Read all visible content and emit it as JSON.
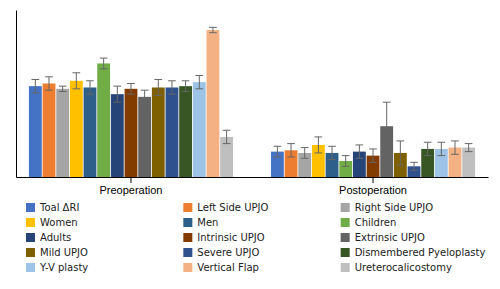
{
  "chart_data": {
    "type": "bar",
    "categories": [
      "Preoperation",
      "Postoperation"
    ],
    "series": [
      {
        "name": "Toal ΔRI",
        "color": "#4472C4",
        "values": [
          0.68,
          0.19
        ],
        "errors": [
          0.05,
          0.04
        ]
      },
      {
        "name": "Left Side UPJO",
        "color": "#ED7D31",
        "values": [
          0.7,
          0.2
        ],
        "errors": [
          0.05,
          0.05
        ]
      },
      {
        "name": "Right Side UPJO",
        "color": "#A5A5A5",
        "values": [
          0.66,
          0.18
        ],
        "errors": [
          0.02,
          0.04
        ]
      },
      {
        "name": "Women",
        "color": "#FFC000",
        "values": [
          0.72,
          0.24
        ],
        "errors": [
          0.06,
          0.06
        ]
      },
      {
        "name": "Men",
        "color": "#2E5F8A",
        "values": [
          0.67,
          0.18
        ],
        "errors": [
          0.05,
          0.05
        ]
      },
      {
        "name": "Children",
        "color": "#70AD47",
        "values": [
          0.85,
          0.12
        ],
        "errors": [
          0.04,
          0.04
        ]
      },
      {
        "name": "Adults",
        "color": "#264478",
        "values": [
          0.62,
          0.19
        ],
        "errors": [
          0.06,
          0.05
        ]
      },
      {
        "name": "Intrinsic UPJO",
        "color": "#833C00",
        "values": [
          0.66,
          0.16
        ],
        "errors": [
          0.04,
          0.05
        ]
      },
      {
        "name": "Extrinsic UPJO",
        "color": "#636363",
        "values": [
          0.6,
          0.38
        ],
        "errors": [
          0.05,
          0.18
        ]
      },
      {
        "name": "Mild UPJO",
        "color": "#7F6000",
        "values": [
          0.67,
          0.18
        ],
        "errors": [
          0.06,
          0.09
        ]
      },
      {
        "name": "Severe UPJO",
        "color": "#2F528F",
        "values": [
          0.67,
          0.08
        ],
        "errors": [
          0.05,
          0.03
        ]
      },
      {
        "name": "Dismembered Pyeloplasty",
        "color": "#375623",
        "values": [
          0.68,
          0.21
        ],
        "errors": [
          0.04,
          0.05
        ]
      },
      {
        "name": "Y-V plasty",
        "color": "#9DC3E6",
        "values": [
          0.71,
          0.21
        ],
        "errors": [
          0.05,
          0.05
        ]
      },
      {
        "name": "Vertical Flap",
        "color": "#F4B183",
        "values": [
          1.1,
          0.22
        ],
        "errors": [
          0.02,
          0.05
        ]
      },
      {
        "name": "Ureterocalicostomy",
        "color": "#BFBFBF",
        "values": [
          0.3,
          0.22
        ],
        "errors": [
          0.05,
          0.03
        ]
      }
    ],
    "ylim": [
      0,
      1.25
    ],
    "tick_labels": "x",
    "grid": false,
    "legend": "bottom"
  }
}
